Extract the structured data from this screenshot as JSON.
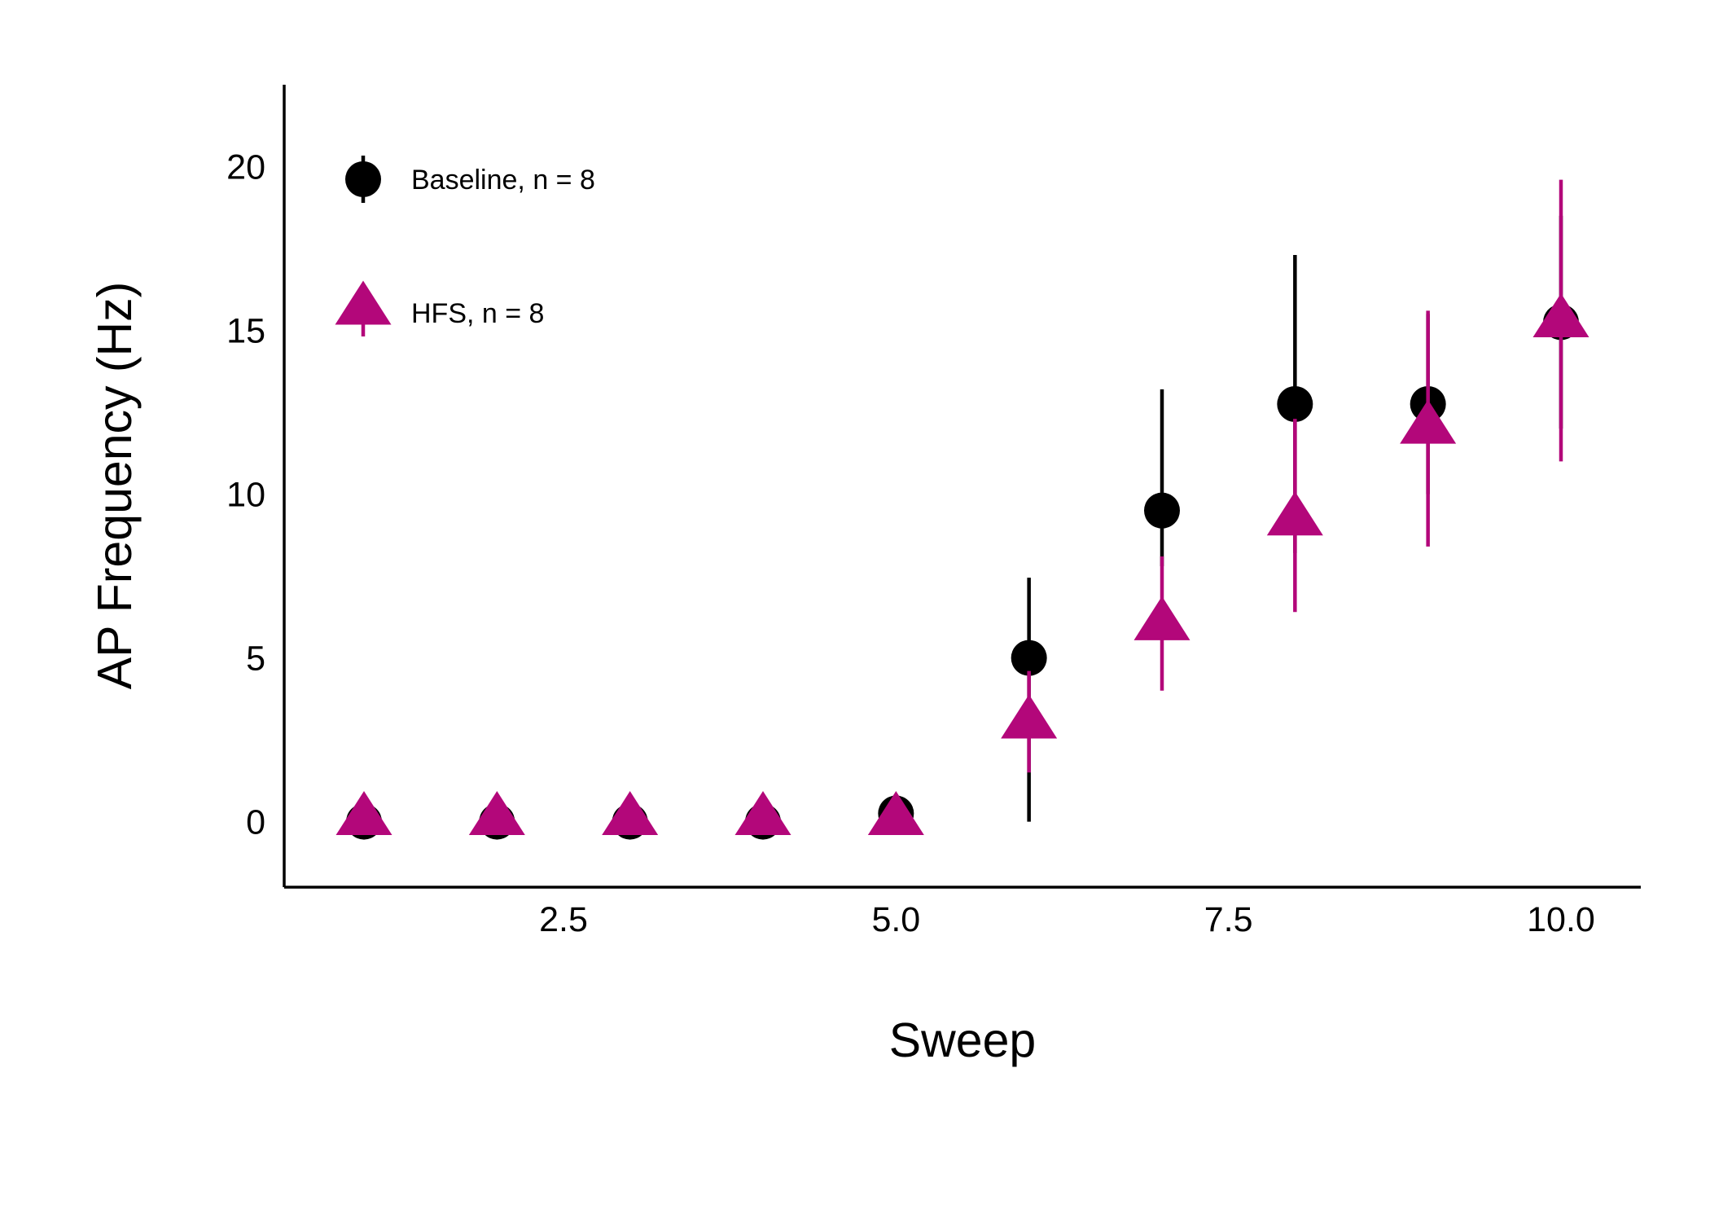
{
  "chart_data": {
    "type": "scatter",
    "title": "",
    "xlabel": "Sweep",
    "ylabel": "AP Frequency (Hz)",
    "xlim": [
      0.4,
      10.6
    ],
    "ylim": [
      -2,
      22.5
    ],
    "x_ticks": [
      2.5,
      5.0,
      7.5,
      10.0
    ],
    "x_tick_labels": [
      "2.5",
      "5.0",
      "7.5",
      "10.0"
    ],
    "y_ticks": [
      0,
      5,
      10,
      15,
      20
    ],
    "y_tick_labels": [
      "0",
      "5",
      "10",
      "15",
      "20"
    ],
    "grid": false,
    "legend_position": "top-left",
    "series": [
      {
        "name": "Baseline, n = 8",
        "marker": "circle",
        "color": "#000000",
        "x": [
          1,
          2,
          3,
          4,
          5,
          6,
          7,
          8,
          9,
          10
        ],
        "y": [
          0,
          0,
          0,
          0,
          0.25,
          5.0,
          9.5,
          12.75,
          12.75,
          15.25
        ],
        "err_low": [
          0,
          0,
          0,
          0,
          0,
          0,
          7.8,
          8.2,
          10.0,
          12.0
        ],
        "err_high": [
          0,
          0,
          0,
          0,
          0,
          7.45,
          13.2,
          17.3,
          15.5,
          18.5
        ]
      },
      {
        "name": "HFS, n = 8",
        "marker": "triangle",
        "color": "#b3077a",
        "x": [
          1,
          2,
          3,
          4,
          5,
          6,
          7,
          8,
          9,
          10
        ],
        "y": [
          0.15,
          0.15,
          0.15,
          0.15,
          0.15,
          3.1,
          6.1,
          9.3,
          12.1,
          15.35
        ],
        "err_low": [
          0,
          0,
          0,
          0,
          0,
          1.5,
          4.0,
          6.4,
          8.4,
          11.0
        ],
        "err_high": [
          0,
          0,
          0,
          0,
          0,
          4.6,
          8.1,
          12.3,
          15.6,
          19.6
        ]
      }
    ]
  }
}
